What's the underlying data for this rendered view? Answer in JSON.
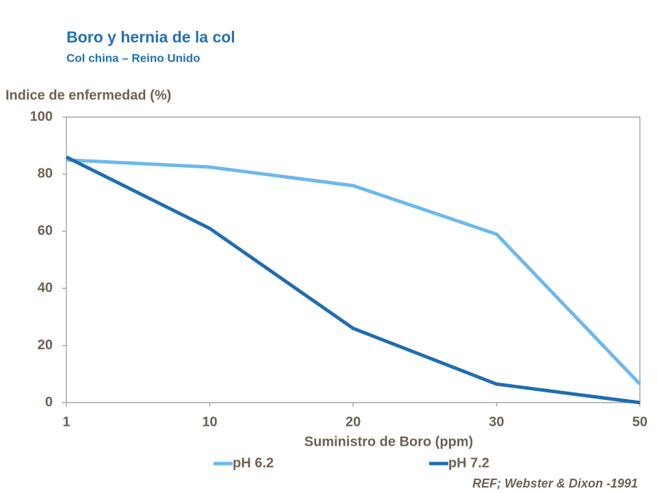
{
  "chart_data": {
    "type": "line",
    "title": "Boro y hernia de la col",
    "subtitle": "Col china – Reino Unido",
    "y_label": "Indice de enfermedad (%)",
    "x_label": "Suministro de Boro (ppm)",
    "note": "REF; Webster & Dixon -1991",
    "categories": [
      "1",
      "10",
      "20",
      "30",
      "50"
    ],
    "series": [
      {
        "name": "pH 6.2",
        "color": "#6cb8ee",
        "values": [
          85,
          82.5,
          76,
          59,
          6.5
        ]
      },
      {
        "name": "pH 7.2",
        "color": "#1f6db3",
        "values": [
          86,
          61,
          26,
          6.5,
          0
        ]
      }
    ],
    "ylim": [
      0,
      100
    ],
    "yticks": [
      0,
      20,
      40,
      60,
      80,
      100
    ],
    "grid": false,
    "legend": "bottom"
  }
}
